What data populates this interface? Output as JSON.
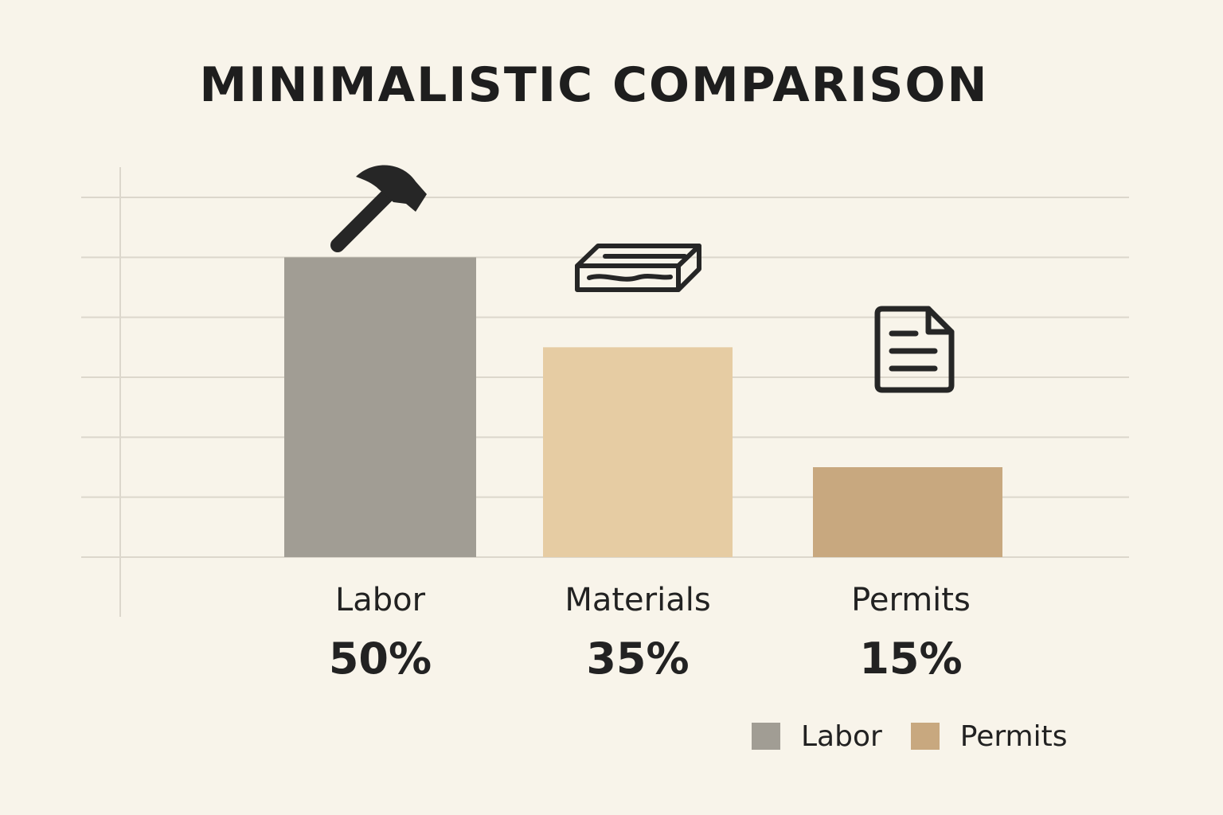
{
  "chart_data": {
    "type": "bar",
    "title": "MINIMALISTIC COMPARISON",
    "categories": [
      "Labor",
      "Materials",
      "Permits"
    ],
    "values": [
      50,
      35,
      15
    ],
    "value_labels": [
      "50%",
      "35%",
      "15%"
    ],
    "ylim": [
      0,
      60
    ],
    "grid": true,
    "colors": [
      "#a19d94",
      "#e6cca3",
      "#c8a87f"
    ],
    "icons": [
      "hammer-icon",
      "lumber-icon",
      "document-icon"
    ],
    "legend": {
      "placement": "bottom-right",
      "entries": [
        {
          "label": "Labor",
          "color": "#a19d94"
        },
        {
          "label": "Permits",
          "color": "#c8a87f"
        }
      ]
    }
  }
}
